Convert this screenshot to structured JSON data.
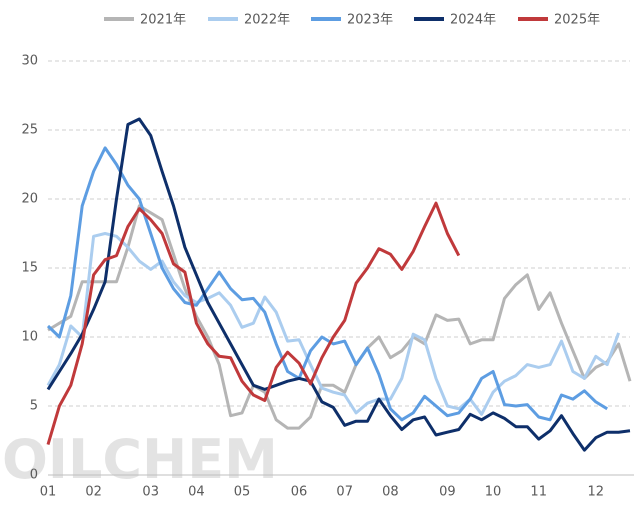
{
  "chart_data": {
    "type": "line",
    "watermark": "OILCHEM",
    "categories": [
      "01",
      null,
      null,
      null,
      "02",
      null,
      null,
      null,
      null,
      "03",
      null,
      null,
      null,
      "04",
      null,
      null,
      null,
      "05",
      null,
      null,
      null,
      null,
      "06",
      null,
      null,
      null,
      "07",
      null,
      null,
      null,
      "08",
      null,
      null,
      null,
      null,
      "09",
      null,
      null,
      null,
      "10",
      null,
      null,
      null,
      "11",
      null,
      null,
      null,
      null,
      "12",
      null,
      null,
      null
    ],
    "series": [
      {
        "name": "2021年",
        "color": "#b5b5b5",
        "values": [
          10.5,
          11,
          11.5,
          14,
          14,
          14,
          14,
          16.5,
          19.5,
          19,
          18.5,
          16,
          13.5,
          11.5,
          10,
          8,
          4.3,
          4.5,
          6.5,
          6,
          4,
          3.4,
          3.4,
          4.2,
          6.5,
          6.5,
          6,
          8,
          9.2,
          10,
          8.5,
          9,
          10,
          9.5,
          11.6,
          11.2,
          11.3,
          9.5,
          9.8,
          9.8,
          12.8,
          13.8,
          14.5,
          12,
          13.2,
          11,
          9,
          7,
          7.8,
          8.2,
          9.5,
          6.8
        ]
      },
      {
        "name": "2022年",
        "color": "#abcdef",
        "values": [
          6.5,
          8,
          10.8,
          10,
          17.3,
          17.5,
          17.3,
          16.5,
          15.5,
          14.9,
          15.5,
          14,
          13,
          12.5,
          12.8,
          13.2,
          12.3,
          10.7,
          11,
          12.9,
          11.8,
          9.7,
          9.8,
          8,
          6.3,
          6,
          5.8,
          4.5,
          5.2,
          5.5,
          5.5,
          7,
          10.2,
          9.8,
          7,
          5,
          4.8,
          5.5,
          4.4,
          6,
          6.8,
          7.2,
          8,
          7.8,
          8,
          9.7,
          7.5,
          7,
          8.6,
          8,
          10.3,
          null
        ]
      },
      {
        "name": "2023年",
        "color": "#5d9de2",
        "values": [
          10.8,
          10,
          13,
          19.5,
          22,
          23.7,
          22.5,
          21,
          20,
          17.5,
          15,
          13.5,
          12.5,
          12.3,
          13.5,
          14.7,
          13.5,
          12.7,
          12.8,
          11.8,
          9.5,
          7.5,
          7,
          9,
          10,
          9.5,
          9.7,
          8,
          9.2,
          7.3,
          4.8,
          4,
          4.5,
          5.7,
          5,
          4.3,
          4.5,
          5.5,
          7,
          7.5,
          5.1,
          5,
          5.1,
          4.2,
          4,
          5.8,
          5.5,
          6.1,
          5.3,
          4.8,
          null,
          null
        ]
      },
      {
        "name": "2024年",
        "color": "#0e2f6a",
        "values": [
          6.2,
          7.5,
          8.8,
          10.2,
          12,
          14,
          20,
          25.4,
          25.8,
          24.6,
          22,
          19.5,
          16.5,
          14.5,
          12.5,
          11,
          9.5,
          8,
          6.5,
          6.2,
          6.5,
          6.8,
          7,
          6.8,
          5.3,
          4.9,
          3.6,
          3.9,
          3.9,
          5.5,
          4.3,
          3.3,
          4,
          4.2,
          2.9,
          3.1,
          3.3,
          4.4,
          4,
          4.5,
          4.1,
          3.5,
          3.5,
          2.6,
          3.2,
          4.3,
          3,
          1.8,
          2.7,
          3.1,
          3.1,
          3.2
        ]
      },
      {
        "name": "2025年",
        "color": "#c0393b",
        "values": [
          2.2,
          5,
          6.5,
          9.5,
          14.5,
          15.6,
          15.9,
          18,
          19.3,
          18.5,
          17.5,
          15.3,
          14.7,
          11,
          9.5,
          8.6,
          8.5,
          6.8,
          5.8,
          5.4,
          7.8,
          8.9,
          8.1,
          6.6,
          8.5,
          10,
          11.2,
          13.9,
          15,
          16.4,
          16,
          14.9,
          16.2,
          18,
          19.7,
          17.5,
          15.9,
          null,
          null,
          null,
          null,
          null,
          null,
          null,
          null,
          null,
          null,
          null,
          null,
          null,
          null,
          null
        ]
      }
    ],
    "ylim": [
      0,
      30
    ],
    "yticks": [
      0,
      5,
      10,
      15,
      20,
      25,
      30
    ],
    "grid": true
  }
}
